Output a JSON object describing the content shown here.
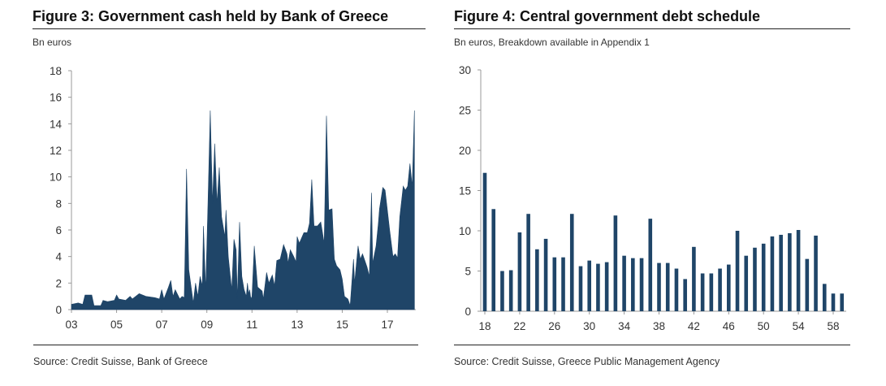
{
  "colors": {
    "fill": "#1f4568",
    "axis": "#999999"
  },
  "chart_data": [
    {
      "type": "area",
      "title": "Figure 3: Government cash held by Bank of Greece",
      "ylabel": "Bn euros",
      "source": "Source: Credit Suisse, Bank of Greece",
      "xlim": [
        2003,
        2018.2
      ],
      "ylim": [
        0,
        18
      ],
      "x_ticks": [
        2003,
        2005,
        2007,
        2009,
        2011,
        2013,
        2015,
        2017
      ],
      "x_tick_labels": [
        "03",
        "05",
        "07",
        "09",
        "11",
        "13",
        "15",
        "17"
      ],
      "y_ticks": [
        0,
        2,
        4,
        6,
        8,
        10,
        12,
        14,
        16,
        18
      ],
      "y_tick_labels": [
        "0",
        "2",
        "4",
        "6",
        "8",
        "10",
        "12",
        "14",
        "16",
        "18"
      ],
      "grid": false,
      "points": [
        [
          2003.0,
          0.4
        ],
        [
          2003.3,
          0.5
        ],
        [
          2003.5,
          0.4
        ],
        [
          2003.6,
          1.1
        ],
        [
          2003.9,
          1.1
        ],
        [
          2004.0,
          0.3
        ],
        [
          2004.3,
          0.3
        ],
        [
          2004.4,
          0.7
        ],
        [
          2004.6,
          0.6
        ],
        [
          2004.9,
          0.7
        ],
        [
          2005.0,
          1.1
        ],
        [
          2005.1,
          0.8
        ],
        [
          2005.4,
          0.7
        ],
        [
          2005.6,
          1.0
        ],
        [
          2005.7,
          0.8
        ],
        [
          2006.0,
          1.2
        ],
        [
          2006.3,
          1.0
        ],
        [
          2006.7,
          0.9
        ],
        [
          2006.9,
          0.8
        ],
        [
          2007.0,
          1.5
        ],
        [
          2007.1,
          0.8
        ],
        [
          2007.3,
          1.7
        ],
        [
          2007.4,
          2.2
        ],
        [
          2007.5,
          1.0
        ],
        [
          2007.6,
          1.5
        ],
        [
          2007.8,
          0.8
        ],
        [
          2007.9,
          1.0
        ],
        [
          2008.0,
          0.9
        ],
        [
          2008.1,
          10.6
        ],
        [
          2008.2,
          3.0
        ],
        [
          2008.4,
          0.5
        ],
        [
          2008.5,
          2.0
        ],
        [
          2008.6,
          1.0
        ],
        [
          2008.7,
          2.5
        ],
        [
          2008.8,
          1.8
        ],
        [
          2008.85,
          6.3
        ],
        [
          2008.95,
          1.5
        ],
        [
          2009.05,
          8.0
        ],
        [
          2009.15,
          15.0
        ],
        [
          2009.25,
          8.0
        ],
        [
          2009.35,
          12.5
        ],
        [
          2009.45,
          8.0
        ],
        [
          2009.55,
          10.7
        ],
        [
          2009.65,
          7.0
        ],
        [
          2009.8,
          5.5
        ],
        [
          2009.85,
          7.5
        ],
        [
          2009.95,
          4.0
        ],
        [
          2010.1,
          1.5
        ],
        [
          2010.2,
          5.3
        ],
        [
          2010.3,
          4.5
        ],
        [
          2010.35,
          0.8
        ],
        [
          2010.45,
          6.6
        ],
        [
          2010.55,
          2.5
        ],
        [
          2010.65,
          1.5
        ],
        [
          2010.75,
          1.0
        ],
        [
          2010.8,
          2.0
        ],
        [
          2010.85,
          1.2
        ],
        [
          2010.9,
          1.5
        ],
        [
          2010.95,
          0.8
        ],
        [
          2011.0,
          1.0
        ],
        [
          2011.1,
          4.8
        ],
        [
          2011.25,
          1.7
        ],
        [
          2011.45,
          1.4
        ],
        [
          2011.5,
          0.8
        ],
        [
          2011.65,
          2.8
        ],
        [
          2011.75,
          2.0
        ],
        [
          2011.9,
          2.6
        ],
        [
          2012.0,
          1.8
        ],
        [
          2012.1,
          3.7
        ],
        [
          2012.25,
          3.8
        ],
        [
          2012.4,
          4.9
        ],
        [
          2012.55,
          4.2
        ],
        [
          2012.6,
          3.5
        ],
        [
          2012.7,
          4.5
        ],
        [
          2012.85,
          4.0
        ],
        [
          2012.95,
          3.6
        ],
        [
          2013.0,
          5.5
        ],
        [
          2013.1,
          5.0
        ],
        [
          2013.3,
          5.8
        ],
        [
          2013.45,
          5.8
        ],
        [
          2013.55,
          6.5
        ],
        [
          2013.65,
          9.8
        ],
        [
          2013.75,
          6.3
        ],
        [
          2013.9,
          6.3
        ],
        [
          2014.05,
          6.6
        ],
        [
          2014.2,
          5.0
        ],
        [
          2014.3,
          14.6
        ],
        [
          2014.4,
          7.5
        ],
        [
          2014.55,
          7.6
        ],
        [
          2014.65,
          3.8
        ],
        [
          2014.75,
          3.3
        ],
        [
          2014.9,
          3.0
        ],
        [
          2015.0,
          2.3
        ],
        [
          2015.1,
          1.0
        ],
        [
          2015.25,
          0.8
        ],
        [
          2015.35,
          0.3
        ],
        [
          2015.5,
          3.8
        ],
        [
          2015.55,
          2.0
        ],
        [
          2015.7,
          4.8
        ],
        [
          2015.8,
          3.8
        ],
        [
          2015.9,
          4.2
        ],
        [
          2016.1,
          3.2
        ],
        [
          2016.2,
          2.5
        ],
        [
          2016.3,
          8.8
        ],
        [
          2016.35,
          3.5
        ],
        [
          2016.5,
          4.8
        ],
        [
          2016.6,
          6.5
        ],
        [
          2016.65,
          7.6
        ],
        [
          2016.8,
          9.2
        ],
        [
          2016.9,
          9.0
        ],
        [
          2017.1,
          6.0
        ],
        [
          2017.25,
          4.0
        ],
        [
          2017.35,
          4.2
        ],
        [
          2017.45,
          3.9
        ],
        [
          2017.55,
          7.0
        ],
        [
          2017.7,
          9.3
        ],
        [
          2017.8,
          9.0
        ],
        [
          2017.9,
          9.3
        ],
        [
          2018.0,
          11.0
        ],
        [
          2018.1,
          9.3
        ],
        [
          2018.2,
          15.0
        ]
      ]
    },
    {
      "type": "bar",
      "title": "Figure 4:  Central government debt schedule",
      "ylabel": "Bn euros, Breakdown available in Appendix 1",
      "source": "Source: Credit Suisse, Greece Public Management Agency",
      "xlim": [
        2018,
        2059
      ],
      "ylim": [
        0,
        30
      ],
      "x_ticks": [
        2018,
        2022,
        2026,
        2030,
        2034,
        2038,
        2042,
        2046,
        2050,
        2054,
        2058
      ],
      "x_tick_labels": [
        "18",
        "22",
        "26",
        "30",
        "34",
        "38",
        "42",
        "46",
        "50",
        "54",
        "58"
      ],
      "y_ticks": [
        0,
        5,
        10,
        15,
        20,
        25,
        30
      ],
      "y_tick_labels": [
        "0",
        "5",
        "10",
        "15",
        "20",
        "25",
        "30"
      ],
      "grid": false,
      "categories": [
        2018,
        2019,
        2020,
        2021,
        2022,
        2023,
        2024,
        2025,
        2026,
        2027,
        2028,
        2029,
        2030,
        2031,
        2032,
        2033,
        2034,
        2035,
        2036,
        2037,
        2038,
        2039,
        2040,
        2041,
        2042,
        2043,
        2044,
        2045,
        2046,
        2047,
        2048,
        2049,
        2050,
        2051,
        2052,
        2053,
        2054,
        2055,
        2056,
        2057,
        2058,
        2059
      ],
      "values": [
        17.2,
        12.7,
        5.0,
        5.1,
        9.8,
        12.1,
        7.7,
        9.0,
        6.7,
        6.7,
        12.1,
        5.6,
        6.3,
        5.9,
        6.1,
        11.9,
        6.9,
        6.6,
        6.6,
        11.5,
        6.0,
        6.0,
        5.3,
        4.0,
        8.0,
        4.7,
        4.7,
        5.3,
        5.8,
        10.0,
        6.9,
        7.9,
        8.4,
        9.3,
        9.5,
        9.7,
        10.1,
        6.5,
        9.4,
        3.4,
        2.2,
        2.2
      ]
    }
  ]
}
